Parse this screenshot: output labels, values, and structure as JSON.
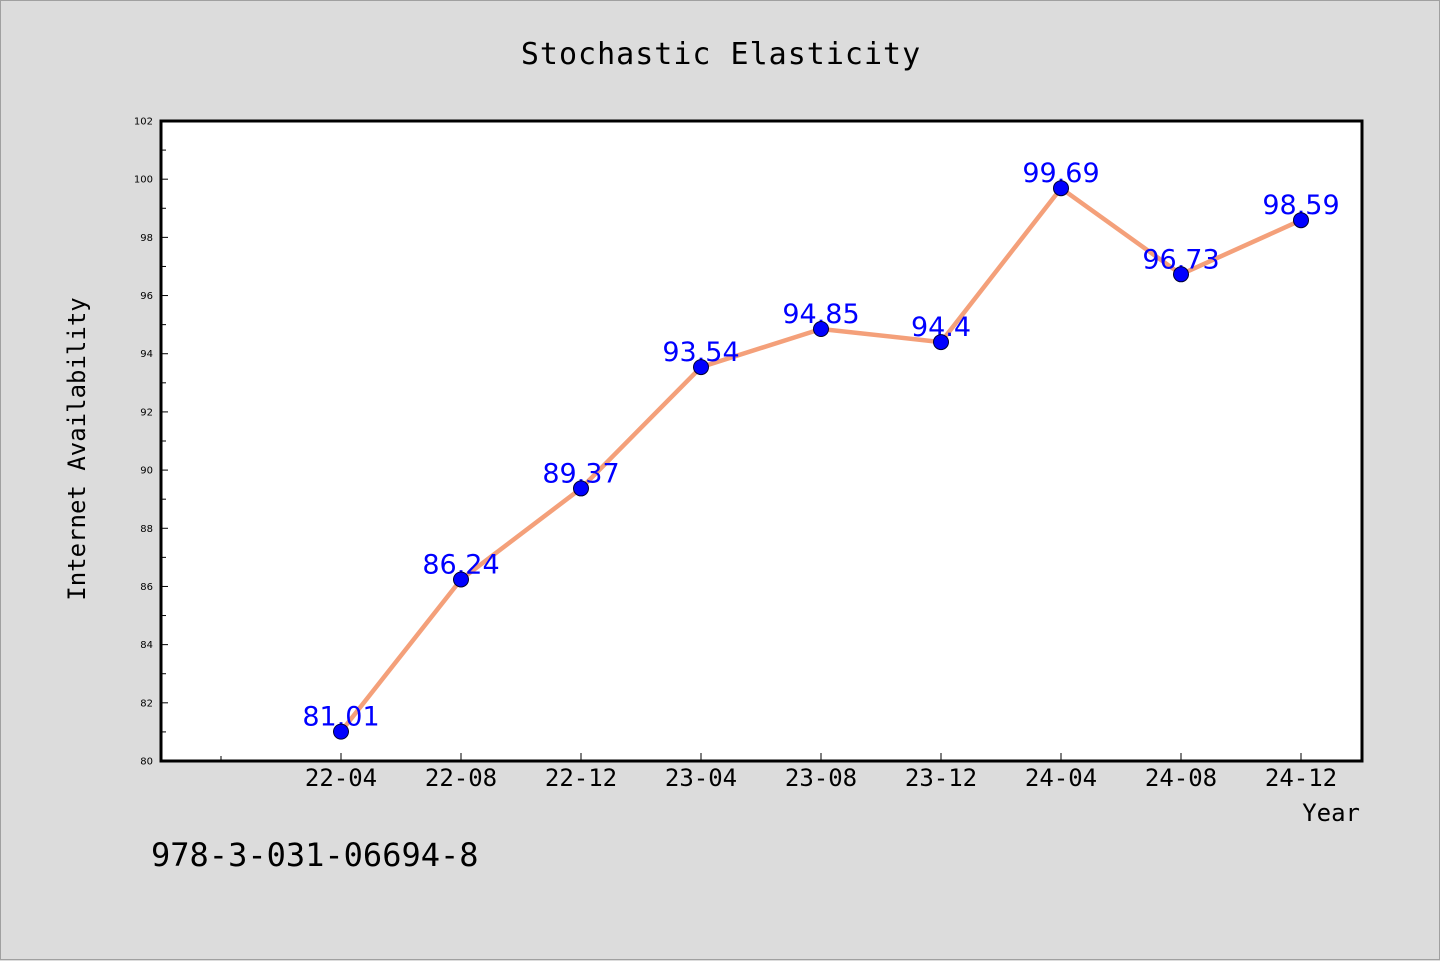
{
  "chart_data": {
    "type": "line",
    "title": "Stochastic Elasticity",
    "xlabel": "Year",
    "ylabel": "Internet Availability",
    "categories": [
      "22-04",
      "22-08",
      "22-12",
      "23-04",
      "23-08",
      "23-12",
      "24-04",
      "24-08",
      "24-12"
    ],
    "series": [
      {
        "values": [
          81.01,
          86.24,
          89.37,
          93.54,
          94.85,
          94.4,
          99.69,
          96.73,
          98.59
        ],
        "labels": [
          "81.01",
          "86.24",
          "89.37",
          "93.54",
          "94.85",
          "94.4",
          "99.69",
          "96.73",
          "98.59"
        ],
        "line_color": "#f4a07a",
        "marker_color": "#0000ff"
      }
    ],
    "ylim": [
      80,
      102
    ],
    "y_ticks": [
      "80",
      "82",
      "84",
      "86",
      "88",
      "90",
      "92",
      "94",
      "96",
      "98",
      "100",
      "102"
    ],
    "grid": false,
    "legend": "none"
  },
  "footer_text": "978-3-031-06694-8",
  "colors": {
    "background": "#dcdcdc",
    "plot_background": "#ffffff",
    "line": "#f4a07a",
    "marker": "#0000ff",
    "data_label": "#0000ff"
  }
}
